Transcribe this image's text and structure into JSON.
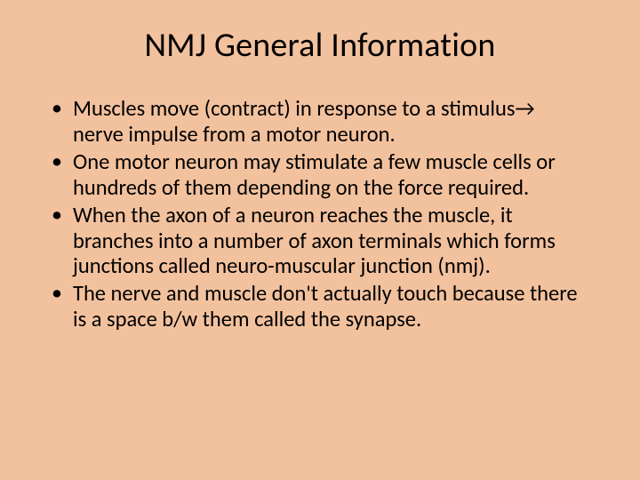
{
  "background_color": "#f2c19d",
  "text_color": "#000000",
  "title": {
    "text": "NMJ General Information",
    "font_size": 38,
    "font_weight": 400,
    "align": "center"
  },
  "bullets": {
    "font_size": 24.5,
    "line_height": 1.18,
    "items": [
      "Muscles move (contract) in response to a stimulus→ nerve impulse from a motor neuron.",
      "One motor neuron may stimulate a few muscle cells or hundreds of them depending on the force required.",
      "When the axon of a neuron reaches the muscle, it branches into a number of axon terminals which forms junctions called neuro-muscular junction (nmj).",
      "The nerve and muscle don't actually touch because there is a space b/w them called the synapse."
    ]
  }
}
